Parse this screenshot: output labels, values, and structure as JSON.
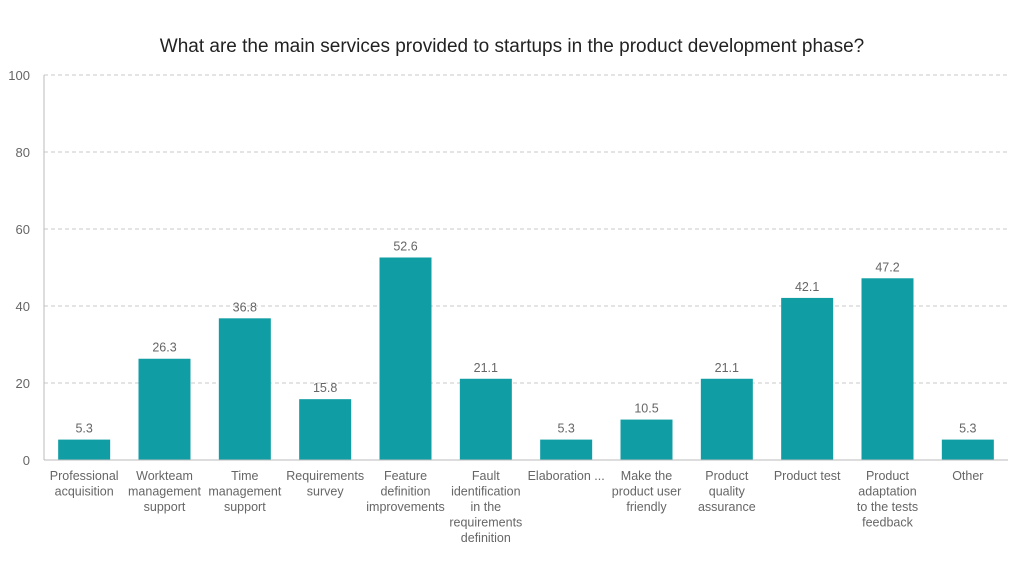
{
  "chart_data": {
    "type": "bar",
    "title": "What are the main services provided to startups in the product development phase?",
    "xlabel": "",
    "ylabel": "",
    "ylim": [
      0,
      100
    ],
    "yticks": [
      0,
      20,
      40,
      60,
      80,
      100
    ],
    "grid": true,
    "bar_color": "#109ea4",
    "categories": [
      [
        "Professional",
        "acquisition"
      ],
      [
        "Workteam",
        "management",
        "support"
      ],
      [
        "Time",
        "management",
        "support"
      ],
      [
        "Requirements",
        "survey"
      ],
      [
        "Feature",
        "definition",
        "improvements"
      ],
      [
        "Fault",
        "identification",
        "in the",
        "requirements",
        "definition"
      ],
      [
        "Elaboration ..."
      ],
      [
        "Make the",
        "product user",
        "friendly"
      ],
      [
        "Product",
        "quality",
        "assurance"
      ],
      [
        "Product test"
      ],
      [
        "Product",
        "adaptation",
        "to the tests",
        "feedback"
      ],
      [
        "Other"
      ]
    ],
    "values": [
      5.3,
      26.3,
      36.8,
      15.8,
      52.6,
      21.1,
      5.3,
      10.5,
      21.1,
      42.1,
      47.2,
      5.3
    ]
  }
}
